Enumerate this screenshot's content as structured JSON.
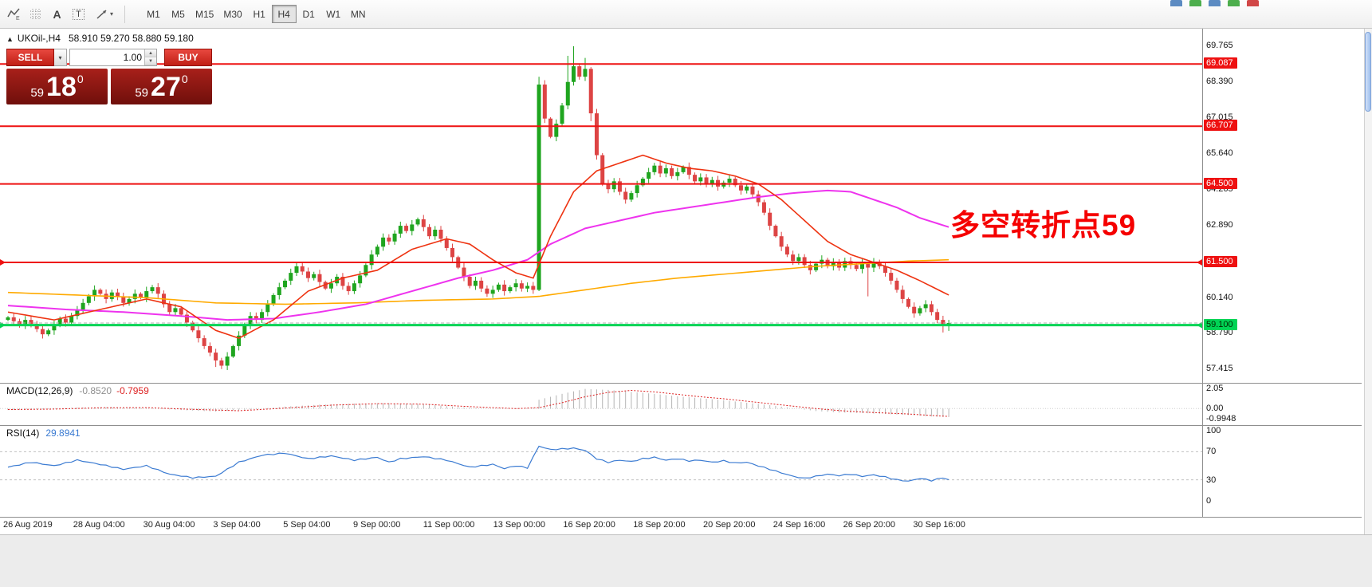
{
  "ui_glyphs": {
    "caret_down": "▾",
    "spin_up": "▲",
    "spin_down": "▼",
    "collapse_up": "▲"
  },
  "toolbar": {
    "icons": [
      {
        "name": "indicators-icon",
        "glyph": "E"
      },
      {
        "name": "grid-icon",
        "glyph": ""
      },
      {
        "name": "text-tool-icon",
        "glyph": "A"
      },
      {
        "name": "label-tool-icon",
        "glyph": "T"
      },
      {
        "name": "shapes-tool-icon",
        "glyph": ""
      }
    ],
    "timeframes": [
      {
        "label": "M1",
        "active": false
      },
      {
        "label": "M5",
        "active": false
      },
      {
        "label": "M15",
        "active": false
      },
      {
        "label": "M30",
        "active": false
      },
      {
        "label": "H1",
        "active": false
      },
      {
        "label": "H4",
        "active": true
      },
      {
        "label": "D1",
        "active": false
      },
      {
        "label": "W1",
        "active": false
      },
      {
        "label": "MN",
        "active": false
      }
    ]
  },
  "chart_header": {
    "symbol": "UKOil-,H4",
    "ohlc": "58.910 59.270 58.880 59.180"
  },
  "trade_panel": {
    "sell_label": "SELL",
    "buy_label": "BUY",
    "volume": "1.00",
    "sell_price": {
      "prefix": "59",
      "big": "18",
      "sup": "0"
    },
    "buy_price": {
      "prefix": "59",
      "big": "27",
      "sup": "0"
    }
  },
  "annotation": {
    "text": "多空转折点59",
    "color": "#f50000"
  },
  "indicator_labels": {
    "macd": {
      "name": "MACD(12,26,9)",
      "main_value": "-0.8520",
      "signal_value": "-0.7959"
    },
    "rsi": {
      "name": "RSI(14)",
      "value": "29.8941"
    }
  },
  "chart_data": {
    "type": "candlestick",
    "symbol": "UKOil-",
    "timeframe": "H4",
    "ylim": [
      57.415,
      69.765
    ],
    "up_color": "#1fa51f",
    "down_color": "#dd4444",
    "first_open": 59.3,
    "closes": [
      59.4,
      59.25,
      59.1,
      59.3,
      59.15,
      58.95,
      58.75,
      58.9,
      59.1,
      59.35,
      59.2,
      59.45,
      59.7,
      59.95,
      60.2,
      60.45,
      60.3,
      60.1,
      60.35,
      60.2,
      59.95,
      60.1,
      60.3,
      60.15,
      60.4,
      60.55,
      60.3,
      59.9,
      59.6,
      59.75,
      59.5,
      59.2,
      58.9,
      58.6,
      58.3,
      58.05,
      57.75,
      57.55,
      57.9,
      58.3,
      58.7,
      59.1,
      59.45,
      59.3,
      59.6,
      59.9,
      60.25,
      60.55,
      60.8,
      61.1,
      61.35,
      61.15,
      60.9,
      61.05,
      60.75,
      60.5,
      60.7,
      60.95,
      60.6,
      60.4,
      60.7,
      61.0,
      61.4,
      61.8,
      62.1,
      62.45,
      62.3,
      62.6,
      62.9,
      62.7,
      62.95,
      63.15,
      62.85,
      62.5,
      62.75,
      62.4,
      62.05,
      61.7,
      61.3,
      60.95,
      60.6,
      60.8,
      60.5,
      60.3,
      60.45,
      60.65,
      60.4,
      60.55,
      60.7,
      60.5,
      60.6,
      60.45,
      68.3,
      67.0,
      66.3,
      66.8,
      67.5,
      68.4,
      69.0,
      68.6,
      68.9,
      67.2,
      65.6,
      64.5,
      64.3,
      64.6,
      64.2,
      63.9,
      64.15,
      64.45,
      64.7,
      64.95,
      65.2,
      64.9,
      65.1,
      64.8,
      64.95,
      65.15,
      64.85,
      64.6,
      64.75,
      64.5,
      64.65,
      64.4,
      64.55,
      64.7,
      64.45,
      64.25,
      64.4,
      64.1,
      63.8,
      63.4,
      62.9,
      62.5,
      62.1,
      61.8,
      61.55,
      61.7,
      61.4,
      61.2,
      61.45,
      61.6,
      61.35,
      61.5,
      61.3,
      61.55,
      61.4,
      61.25,
      61.45,
      61.3,
      61.5,
      61.35,
      61.1,
      60.8,
      60.45,
      60.1,
      59.8,
      59.55,
      59.75,
      59.9,
      59.6,
      59.3,
      59.1,
      59.18
    ],
    "wick_overrides": {
      "36": {
        "low": 57.5
      },
      "37": {
        "low": 57.42
      },
      "92": {
        "low": 60.4,
        "high": 68.6
      },
      "97": {
        "high": 69.4
      },
      "98": {
        "high": 69.765
      },
      "100": {
        "high": 69.32
      },
      "101": {
        "low": 66.9
      },
      "149": {
        "low": 60.2
      },
      "162": {
        "low": 58.82
      },
      "163": {
        "low": 58.88,
        "high": 59.3
      }
    },
    "ma_lines": [
      {
        "name": "ma-orange",
        "color": "#ffaa00",
        "width": 1.6,
        "anchors": [
          [
            0,
            60.35
          ],
          [
            12,
            60.25
          ],
          [
            24,
            60.15
          ],
          [
            36,
            59.95
          ],
          [
            48,
            59.9
          ],
          [
            60,
            59.95
          ],
          [
            72,
            60.05
          ],
          [
            84,
            60.1
          ],
          [
            92,
            60.2
          ],
          [
            100,
            60.45
          ],
          [
            108,
            60.7
          ],
          [
            116,
            60.9
          ],
          [
            124,
            61.05
          ],
          [
            132,
            61.2
          ],
          [
            140,
            61.35
          ],
          [
            148,
            61.45
          ],
          [
            156,
            61.55
          ],
          [
            163,
            61.6
          ]
        ]
      },
      {
        "name": "ma-magenta",
        "color": "#ee33ee",
        "width": 2,
        "anchors": [
          [
            0,
            59.85
          ],
          [
            10,
            59.7
          ],
          [
            20,
            59.6
          ],
          [
            30,
            59.45
          ],
          [
            38,
            59.3
          ],
          [
            46,
            59.35
          ],
          [
            54,
            59.6
          ],
          [
            62,
            59.9
          ],
          [
            70,
            60.4
          ],
          [
            78,
            60.9
          ],
          [
            84,
            61.2
          ],
          [
            90,
            61.6
          ],
          [
            94,
            62.2
          ],
          [
            100,
            62.8
          ],
          [
            106,
            63.1
          ],
          [
            112,
            63.4
          ],
          [
            118,
            63.6
          ],
          [
            124,
            63.8
          ],
          [
            130,
            64.0
          ],
          [
            136,
            64.15
          ],
          [
            142,
            64.25
          ],
          [
            146,
            64.2
          ],
          [
            150,
            63.9
          ],
          [
            154,
            63.6
          ],
          [
            158,
            63.2
          ],
          [
            163,
            62.85
          ]
        ]
      },
      {
        "name": "ma-red",
        "color": "#ee3311",
        "width": 1.6,
        "anchors": [
          [
            0,
            59.6
          ],
          [
            8,
            59.3
          ],
          [
            16,
            59.7
          ],
          [
            24,
            60.1
          ],
          [
            30,
            59.8
          ],
          [
            36,
            58.9
          ],
          [
            40,
            58.6
          ],
          [
            46,
            59.3
          ],
          [
            52,
            60.4
          ],
          [
            58,
            60.9
          ],
          [
            64,
            61.2
          ],
          [
            70,
            62.0
          ],
          [
            76,
            62.4
          ],
          [
            80,
            62.2
          ],
          [
            84,
            61.6
          ],
          [
            88,
            61.1
          ],
          [
            91,
            60.9
          ],
          [
            94,
            62.5
          ],
          [
            98,
            64.2
          ],
          [
            102,
            65.0
          ],
          [
            106,
            65.3
          ],
          [
            110,
            65.6
          ],
          [
            114,
            65.3
          ],
          [
            118,
            65.1
          ],
          [
            122,
            65.0
          ],
          [
            126,
            64.8
          ],
          [
            130,
            64.5
          ],
          [
            134,
            63.9
          ],
          [
            138,
            63.1
          ],
          [
            142,
            62.3
          ],
          [
            146,
            61.8
          ],
          [
            150,
            61.5
          ],
          [
            154,
            61.2
          ],
          [
            158,
            60.8
          ],
          [
            163,
            60.25
          ]
        ]
      }
    ],
    "hlines": [
      {
        "price": 69.087,
        "color": "#ee1111",
        "width": 2,
        "arrows": false
      },
      {
        "price": 66.707,
        "color": "#ee1111",
        "width": 2,
        "arrows": false
      },
      {
        "price": 64.5,
        "color": "#ee1111",
        "width": 2,
        "arrows": false
      },
      {
        "price": 61.5,
        "color": "#ee1111",
        "width": 2,
        "arrows": true
      },
      {
        "price": 59.1,
        "color": "#00d455",
        "width": 3,
        "arrows": true
      }
    ],
    "bid_line": {
      "price": 59.18,
      "color": "#b0b0b0"
    },
    "price_axis_labels": [
      {
        "text": "69.765",
        "price": 69.765
      },
      {
        "text": "68.390",
        "price": 68.39
      },
      {
        "text": "67.015",
        "price": 67.015
      },
      {
        "text": "65.640",
        "price": 65.64
      },
      {
        "text": "64.265",
        "price": 64.265
      },
      {
        "text": "62.890",
        "price": 62.89
      },
      {
        "text": "60.140",
        "price": 60.14
      },
      {
        "text": "58.790",
        "price": 58.79
      },
      {
        "text": "57.415",
        "price": 57.415
      }
    ],
    "line_badges": [
      {
        "text": "69.087",
        "price": 69.087,
        "type": "red"
      },
      {
        "text": "66.707",
        "price": 66.707,
        "type": "red"
      },
      {
        "text": "64.500",
        "price": 64.5,
        "type": "red"
      },
      {
        "text": "61.500",
        "price": 61.5,
        "type": "red"
      },
      {
        "text": "59.100",
        "price": 59.1,
        "type": "green"
      }
    ],
    "macd": {
      "hist_color": "#b4b4b4",
      "signal_color": "#dd2222",
      "axis_labels": [
        {
          "text": "2.05",
          "value": 2.05
        },
        {
          "text": "0.00",
          "value": 0.0
        },
        {
          "text": "-0.9948",
          "value": -0.9948
        }
      ],
      "hist_anchors": [
        [
          0,
          -0.15
        ],
        [
          6,
          -0.08
        ],
        [
          12,
          0.1
        ],
        [
          18,
          0.15
        ],
        [
          24,
          0.05
        ],
        [
          30,
          -0.15
        ],
        [
          36,
          -0.3
        ],
        [
          42,
          -0.1
        ],
        [
          48,
          0.2
        ],
        [
          54,
          0.4
        ],
        [
          60,
          0.5
        ],
        [
          66,
          0.55
        ],
        [
          72,
          0.45
        ],
        [
          78,
          0.15
        ],
        [
          84,
          -0.02
        ],
        [
          88,
          0.0
        ],
        [
          91,
          0.05
        ],
        [
          92,
          0.9
        ],
        [
          96,
          1.5
        ],
        [
          100,
          2.0
        ],
        [
          104,
          1.9
        ],
        [
          108,
          1.7
        ],
        [
          112,
          1.5
        ],
        [
          116,
          1.25
        ],
        [
          120,
          1.05
        ],
        [
          124,
          0.85
        ],
        [
          128,
          0.6
        ],
        [
          132,
          0.35
        ],
        [
          136,
          0.05
        ],
        [
          140,
          -0.25
        ],
        [
          144,
          -0.4
        ],
        [
          148,
          -0.45
        ],
        [
          152,
          -0.55
        ],
        [
          156,
          -0.65
        ],
        [
          160,
          -0.8
        ],
        [
          163,
          -0.85
        ]
      ],
      "signal_anchors": [
        [
          0,
          -0.1
        ],
        [
          8,
          -0.05
        ],
        [
          16,
          0.08
        ],
        [
          24,
          0.1
        ],
        [
          32,
          -0.08
        ],
        [
          40,
          -0.22
        ],
        [
          48,
          0.05
        ],
        [
          56,
          0.35
        ],
        [
          64,
          0.5
        ],
        [
          72,
          0.45
        ],
        [
          80,
          0.2
        ],
        [
          88,
          0.0
        ],
        [
          92,
          0.1
        ],
        [
          96,
          0.6
        ],
        [
          100,
          1.2
        ],
        [
          104,
          1.65
        ],
        [
          108,
          1.85
        ],
        [
          112,
          1.7
        ],
        [
          116,
          1.45
        ],
        [
          120,
          1.2
        ],
        [
          124,
          1.0
        ],
        [
          128,
          0.75
        ],
        [
          132,
          0.5
        ],
        [
          136,
          0.25
        ],
        [
          140,
          0.0
        ],
        [
          144,
          -0.2
        ],
        [
          148,
          -0.35
        ],
        [
          152,
          -0.45
        ],
        [
          156,
          -0.55
        ],
        [
          160,
          -0.7
        ],
        [
          163,
          -0.8
        ]
      ]
    },
    "rsi": {
      "color": "#3b7bd2",
      "levels": [
        70,
        30
      ],
      "axis_labels": [
        {
          "text": "100",
          "value": 100
        },
        {
          "text": "70",
          "value": 70
        },
        {
          "text": "30",
          "value": 30
        },
        {
          "text": "0",
          "value": 0
        }
      ],
      "anchors": [
        [
          0,
          48
        ],
        [
          4,
          55
        ],
        [
          8,
          50
        ],
        [
          12,
          58
        ],
        [
          16,
          52
        ],
        [
          20,
          45
        ],
        [
          24,
          50
        ],
        [
          28,
          38
        ],
        [
          32,
          33
        ],
        [
          36,
          35
        ],
        [
          40,
          55
        ],
        [
          44,
          65
        ],
        [
          48,
          68
        ],
        [
          52,
          60
        ],
        [
          56,
          64
        ],
        [
          60,
          58
        ],
        [
          64,
          62
        ],
        [
          66,
          55
        ],
        [
          68,
          60
        ],
        [
          72,
          63
        ],
        [
          76,
          58
        ],
        [
          80,
          48
        ],
        [
          84,
          52
        ],
        [
          86,
          46
        ],
        [
          88,
          50
        ],
        [
          90,
          47
        ],
        [
          92,
          78
        ],
        [
          94,
          73
        ],
        [
          96,
          74
        ],
        [
          98,
          75
        ],
        [
          100,
          72
        ],
        [
          102,
          60
        ],
        [
          104,
          55
        ],
        [
          106,
          58
        ],
        [
          108,
          56
        ],
        [
          110,
          60
        ],
        [
          112,
          62
        ],
        [
          114,
          58
        ],
        [
          116,
          60
        ],
        [
          118,
          57
        ],
        [
          120,
          58
        ],
        [
          122,
          55
        ],
        [
          124,
          57
        ],
        [
          126,
          54
        ],
        [
          128,
          55
        ],
        [
          130,
          50
        ],
        [
          132,
          45
        ],
        [
          134,
          40
        ],
        [
          136,
          35
        ],
        [
          138,
          32
        ],
        [
          140,
          35
        ],
        [
          142,
          38
        ],
        [
          144,
          36
        ],
        [
          146,
          38
        ],
        [
          148,
          35
        ],
        [
          150,
          37
        ],
        [
          152,
          34
        ],
        [
          154,
          30
        ],
        [
          156,
          28
        ],
        [
          158,
          32
        ],
        [
          160,
          29
        ],
        [
          162,
          33
        ],
        [
          163,
          30
        ]
      ]
    },
    "time_labels": [
      "26 Aug 2019",
      "28 Aug 04:00",
      "30 Aug 04:00",
      "3 Sep 04:00",
      "5 Sep 04:00",
      "9 Sep 00:00",
      "11 Sep 00:00",
      "13 Sep 00:00",
      "16 Sep 20:00",
      "18 Sep 20:00",
      "20 Sep 20:00",
      "24 Sep 16:00",
      "26 Sep 20:00",
      "30 Sep 16:00"
    ]
  }
}
